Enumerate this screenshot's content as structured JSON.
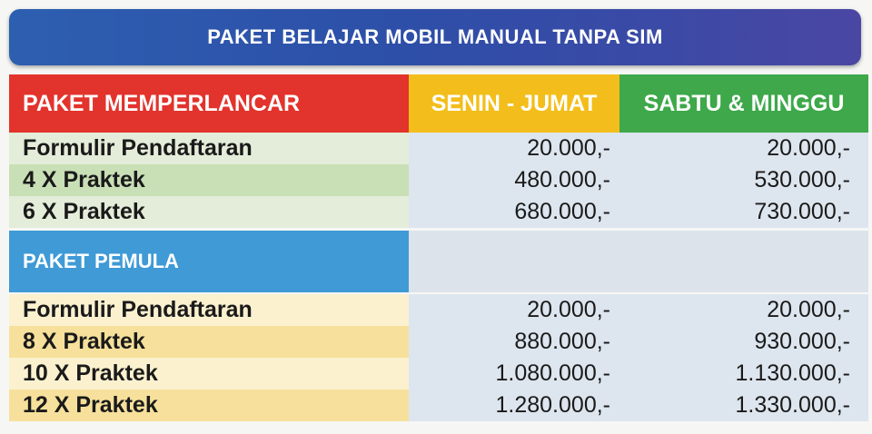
{
  "title": "PAKET BELAJAR MOBIL MANUAL TANPA SIM",
  "headers": {
    "package": "PAKET MEMPERLANCAR",
    "weekday": "SENIN - JUMAT",
    "weekend": "SABTU & MINGGU"
  },
  "memperlancar": [
    {
      "item": "Formulir Pendaftaran",
      "weekday": "20.000,-",
      "weekend": "20.000,-"
    },
    {
      "item": "4 X Praktek",
      "weekday": "480.000,-",
      "weekend": "530.000,-"
    },
    {
      "item": "6 X Praktek",
      "weekday": "680.000,-",
      "weekend": "730.000,-"
    }
  ],
  "pemula_label": "PAKET PEMULA",
  "pemula": [
    {
      "item": "Formulir Pendaftaran",
      "weekday": "20.000,-",
      "weekend": "20.000,-"
    },
    {
      "item": "8 X Praktek",
      "weekday": "880.000,-",
      "weekend": "930.000,-"
    },
    {
      "item": "10 X Praktek",
      "weekday": "1.080.000,-",
      "weekend": "1.130.000,-"
    },
    {
      "item": "12 X Praktek",
      "weekday": "1.280.000,-",
      "weekend": "1.330.000,-"
    }
  ],
  "colors": {
    "title_bar": "#2d4fa8",
    "header_red": "#e2332c",
    "header_yellow": "#f3be1b",
    "header_green": "#3ea84a",
    "section_blue": "#3f9ad6"
  }
}
